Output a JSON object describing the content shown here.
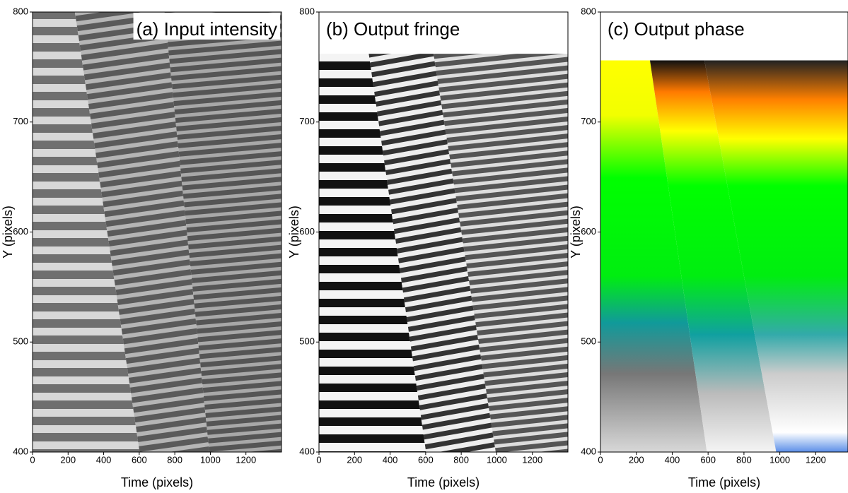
{
  "chart_data": [
    {
      "type": "image",
      "title": "(a) Input intensity",
      "xlabel": "Time (pixels)",
      "ylabel": "Y (pixels)",
      "xlim": [
        0,
        1400
      ],
      "ylim": [
        400,
        800
      ],
      "xticks": [
        0,
        200,
        400,
        600,
        800,
        1000,
        1200
      ],
      "yticks": [
        400,
        500,
        600,
        700,
        800
      ]
    },
    {
      "type": "image",
      "title": "(b) Output fringe",
      "xlabel": "Time (pixels)",
      "ylabel": "Y (pixels)",
      "xlim": [
        0,
        1400
      ],
      "ylim": [
        400,
        800
      ],
      "xticks": [
        0,
        200,
        400,
        600,
        800,
        1000,
        1200
      ],
      "yticks": [
        400,
        500,
        600,
        700,
        800
      ]
    },
    {
      "type": "image",
      "title": "(c) Output phase",
      "xlabel": "Time (pixels)",
      "ylabel": "Y (pixels)",
      "xlim": [
        0,
        1380
      ],
      "ylim": [
        400,
        800
      ],
      "xticks": [
        0,
        200,
        400,
        600,
        800,
        1000,
        1200
      ],
      "yticks": [
        400,
        500,
        600,
        700,
        800
      ]
    }
  ]
}
